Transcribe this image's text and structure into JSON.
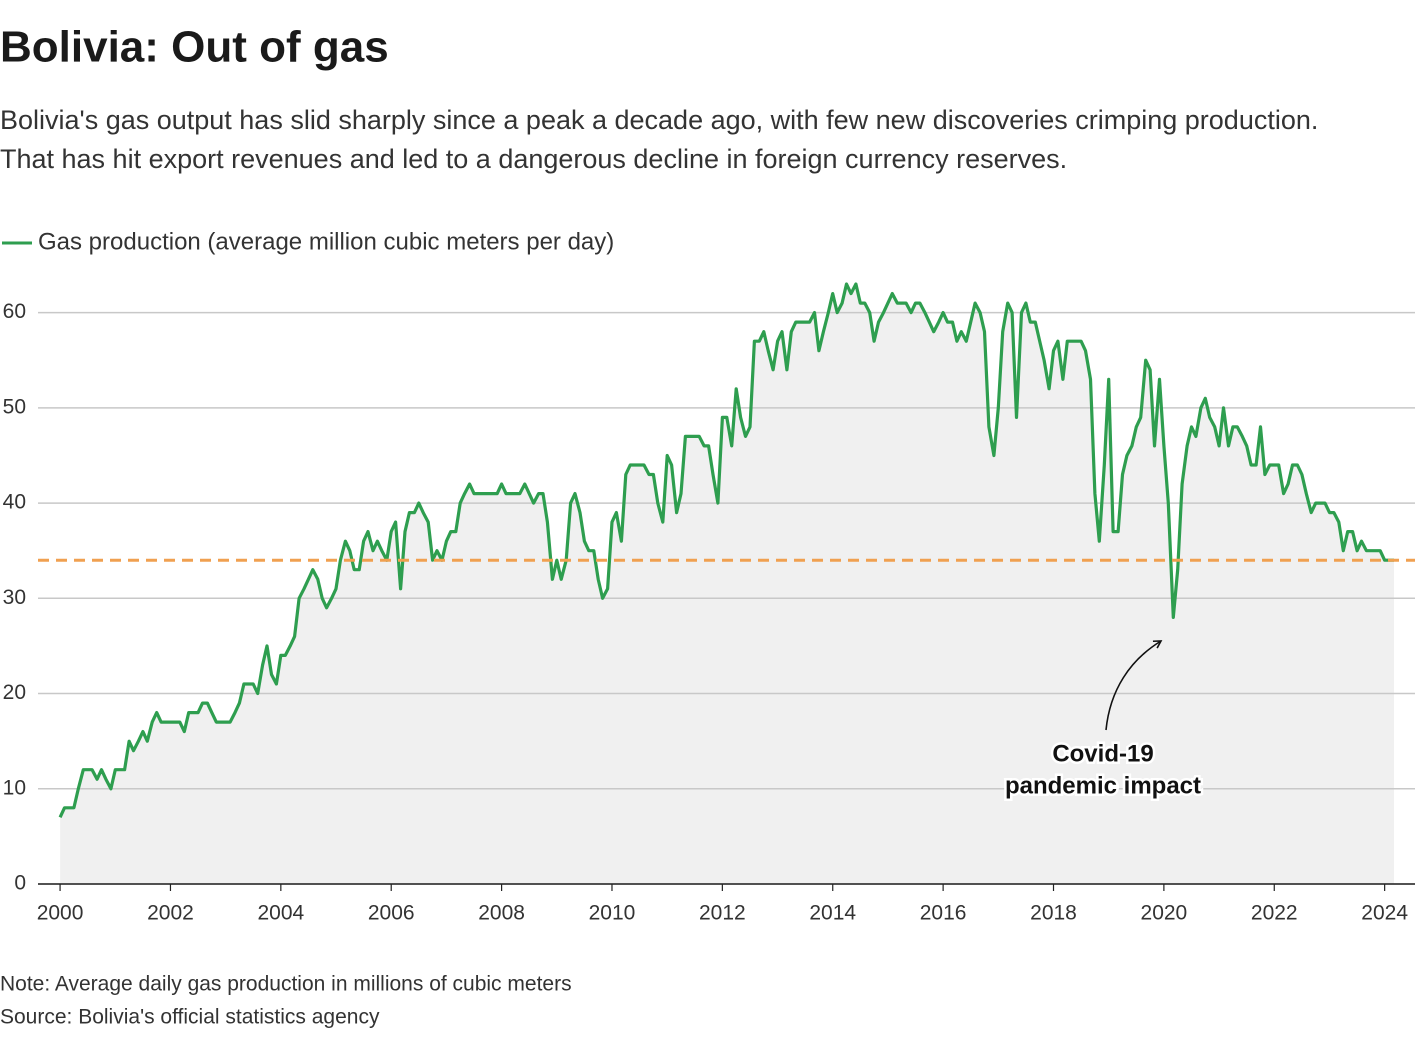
{
  "chart_data": {
    "type": "area-line",
    "title": "Bolivia: Out of gas",
    "subtitle": [
      "Bolivia's gas output has slid sharply since a peak a decade ago, with few new discoveries crimping production.",
      "That has hit export revenues and led to a dangerous decline in foreign currency reserves."
    ],
    "x": [
      2000,
      2000.08,
      2000.17,
      2000.25,
      2000.33,
      2000.42,
      2000.5,
      2000.58,
      2000.67,
      2000.75,
      2000.83,
      2000.92,
      2001,
      2001.08,
      2001.17,
      2001.25,
      2001.33,
      2001.42,
      2001.5,
      2001.58,
      2001.67,
      2001.75,
      2001.83,
      2001.92,
      2002,
      2002.08,
      2002.17,
      2002.25,
      2002.33,
      2002.42,
      2002.5,
      2002.58,
      2002.67,
      2002.75,
      2002.83,
      2002.92,
      2003,
      2003.08,
      2003.17,
      2003.25,
      2003.33,
      2003.42,
      2003.5,
      2003.58,
      2003.67,
      2003.75,
      2003.83,
      2003.92,
      2004,
      2004.08,
      2004.17,
      2004.25,
      2004.33,
      2004.42,
      2004.5,
      2004.58,
      2004.67,
      2004.75,
      2004.83,
      2004.92,
      2005,
      2005.08,
      2005.17,
      2005.25,
      2005.33,
      2005.42,
      2005.5,
      2005.58,
      2005.67,
      2005.75,
      2005.83,
      2005.92,
      2006,
      2006.08,
      2006.17,
      2006.25,
      2006.33,
      2006.42,
      2006.5,
      2006.58,
      2006.67,
      2006.75,
      2006.83,
      2006.92,
      2007,
      2007.08,
      2007.17,
      2007.25,
      2007.33,
      2007.42,
      2007.5,
      2007.58,
      2007.67,
      2007.75,
      2007.83,
      2007.92,
      2008,
      2008.08,
      2008.17,
      2008.25,
      2008.33,
      2008.42,
      2008.5,
      2008.58,
      2008.67,
      2008.75,
      2008.83,
      2008.92,
      2009,
      2009.08,
      2009.17,
      2009.25,
      2009.33,
      2009.42,
      2009.5,
      2009.58,
      2009.67,
      2009.75,
      2009.83,
      2009.92,
      2010,
      2010.08,
      2010.17,
      2010.25,
      2010.33,
      2010.42,
      2010.5,
      2010.58,
      2010.67,
      2010.75,
      2010.83,
      2010.92,
      2011,
      2011.08,
      2011.17,
      2011.25,
      2011.33,
      2011.42,
      2011.5,
      2011.58,
      2011.67,
      2011.75,
      2011.83,
      2011.92,
      2012,
      2012.08,
      2012.17,
      2012.25,
      2012.33,
      2012.42,
      2012.5,
      2012.58,
      2012.67,
      2012.75,
      2012.83,
      2012.92,
      2013,
      2013.08,
      2013.17,
      2013.25,
      2013.33,
      2013.42,
      2013.5,
      2013.58,
      2013.67,
      2013.75,
      2013.83,
      2013.92,
      2014,
      2014.08,
      2014.17,
      2014.25,
      2014.33,
      2014.42,
      2014.5,
      2014.58,
      2014.67,
      2014.75,
      2014.83,
      2014.92,
      2015,
      2015.08,
      2015.17,
      2015.25,
      2015.33,
      2015.42,
      2015.5,
      2015.58,
      2015.67,
      2015.75,
      2015.83,
      2015.92,
      2016,
      2016.08,
      2016.17,
      2016.25,
      2016.33,
      2016.42,
      2016.5,
      2016.58,
      2016.67,
      2016.75,
      2016.83,
      2016.92,
      2017,
      2017.08,
      2017.17,
      2017.25,
      2017.33,
      2017.42,
      2017.5,
      2017.58,
      2017.67,
      2017.75,
      2017.83,
      2017.92,
      2018,
      2018.08,
      2018.17,
      2018.25,
      2018.33,
      2018.42,
      2018.5,
      2018.58,
      2018.67,
      2018.75,
      2018.83,
      2018.92,
      2019,
      2019.08,
      2019.17,
      2019.25,
      2019.33,
      2019.42,
      2019.5,
      2019.58,
      2019.67,
      2019.75,
      2019.83,
      2019.92,
      2020,
      2020.08,
      2020.17,
      2020.25,
      2020.33,
      2020.42,
      2020.5,
      2020.58,
      2020.67,
      2020.75,
      2020.83,
      2020.92,
      2021,
      2021.08,
      2021.17,
      2021.25,
      2021.33,
      2021.42,
      2021.5,
      2021.58,
      2021.67,
      2021.75,
      2021.83,
      2021.92,
      2022,
      2022.08,
      2022.17,
      2022.25,
      2022.33,
      2022.42,
      2022.5,
      2022.58,
      2022.67,
      2022.75,
      2022.83,
      2022.92,
      2023,
      2023.08,
      2023.17,
      2023.25,
      2023.33,
      2023.42,
      2023.5,
      2023.58,
      2023.67,
      2023.75,
      2023.83,
      2023.92,
      2024,
      2024.08,
      2024.17
    ],
    "series": [
      {
        "name": "Gas production (average million cubic meters per day)",
        "color": "#2e9e4f",
        "area_color": "#f0f0f0",
        "values": [
          7,
          8,
          8,
          8,
          10,
          12,
          12,
          12,
          11,
          12,
          11,
          10,
          12,
          12,
          12,
          15,
          14,
          15,
          16,
          15,
          17,
          18,
          17,
          17,
          17,
          17,
          17,
          16,
          18,
          18,
          18,
          19,
          19,
          18,
          17,
          17,
          17,
          17,
          18,
          19,
          21,
          21,
          21,
          20,
          23,
          25,
          22,
          21,
          24,
          24,
          25,
          26,
          30,
          31,
          32,
          33,
          32,
          30,
          29,
          30,
          31,
          34,
          36,
          35,
          33,
          33,
          36,
          37,
          35,
          36,
          35,
          34,
          37,
          38,
          31,
          37,
          39,
          39,
          40,
          39,
          38,
          34,
          35,
          34,
          36,
          37,
          37,
          40,
          41,
          42,
          41,
          41,
          41,
          41,
          41,
          41,
          42,
          41,
          41,
          41,
          41,
          42,
          41,
          40,
          41,
          41,
          38,
          32,
          34,
          32,
          34,
          40,
          41,
          39,
          36,
          35,
          35,
          32,
          30,
          31,
          38,
          39,
          36,
          43,
          44,
          44,
          44,
          44,
          43,
          43,
          40,
          38,
          45,
          44,
          39,
          41,
          47,
          47,
          47,
          47,
          46,
          46,
          43,
          40,
          49,
          49,
          46,
          52,
          49,
          47,
          48,
          57,
          57,
          58,
          56,
          54,
          57,
          58,
          54,
          58,
          59,
          59,
          59,
          59,
          60,
          56,
          58,
          60,
          62,
          60,
          61,
          63,
          62,
          63,
          61,
          61,
          60,
          57,
          59,
          60,
          61,
          62,
          61,
          61,
          61,
          60,
          61,
          61,
          60,
          59,
          58,
          59,
          60,
          59,
          59,
          57,
          58,
          57,
          59,
          61,
          60,
          58,
          48,
          45,
          50,
          58,
          61,
          60,
          49,
          60,
          61,
          59,
          59,
          57,
          55,
          52,
          56,
          57,
          53,
          57,
          57,
          57,
          57,
          56,
          53,
          41,
          36,
          44,
          53,
          37,
          37,
          43,
          45,
          46,
          48,
          49,
          55,
          54,
          46,
          53,
          46,
          40,
          28,
          33,
          42,
          46,
          48,
          47,
          50,
          51,
          49,
          48,
          46,
          50,
          46,
          48,
          48,
          47,
          46,
          44,
          44,
          48,
          43,
          44,
          44,
          44,
          41,
          42,
          44,
          44,
          43,
          41,
          39,
          40,
          40,
          40,
          39,
          39,
          38,
          35,
          37,
          37,
          35,
          36,
          35,
          35,
          35,
          35,
          34,
          34,
          34
        ]
      }
    ],
    "reference_line": {
      "value": 34,
      "color": "#f0a050"
    },
    "annotation": [
      "Covid-19",
      "pandemic impact"
    ],
    "xlim": [
      1999.6,
      2024.55
    ],
    "xticks": [
      2000,
      2002,
      2004,
      2006,
      2008,
      2010,
      2012,
      2014,
      2016,
      2018,
      2020,
      2022,
      2024
    ],
    "ylim": [
      0,
      65
    ],
    "yticks": [
      0,
      10,
      20,
      30,
      40,
      50,
      60
    ],
    "grid": true,
    "notes": [
      "Note: Average daily gas production in millions of cubic meters",
      "Source: Bolivia's official statistics agency"
    ]
  }
}
